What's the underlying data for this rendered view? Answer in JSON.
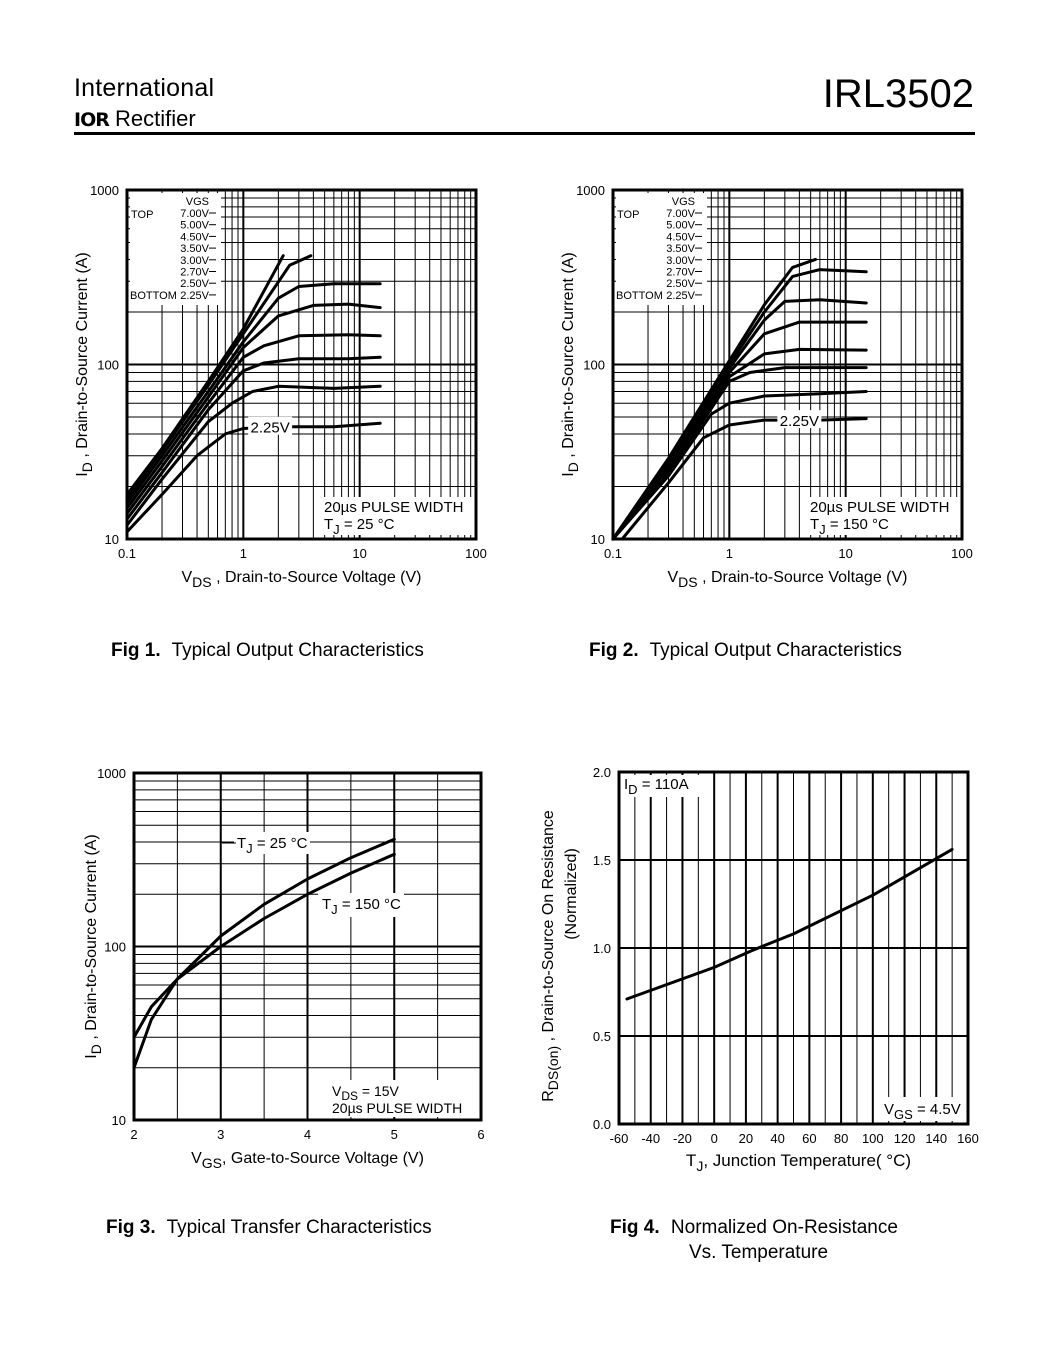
{
  "header": {
    "brand_line1": "International",
    "brand_logo": "IOR",
    "brand_line2": "Rectifier",
    "part_number": "IRL3502"
  },
  "captions": [
    {
      "fig": "Fig 1.",
      "text": "Typical Output Characteristics"
    },
    {
      "fig": "Fig 2.",
      "text": "Typical Output Characteristics"
    },
    {
      "fig": "Fig 3.",
      "text": "Typical Transfer Characteristics"
    },
    {
      "fig": "Fig 4.",
      "text": "Normalized On-Resistance",
      "text2": "Vs. Temperature"
    }
  ],
  "chart_data": [
    {
      "type": "line",
      "title": "Fig 1. Typical Output Characteristics",
      "xscale": "log",
      "yscale": "log",
      "xlim": [
        0.1,
        100
      ],
      "ylim": [
        10,
        1000
      ],
      "xticks": [
        "0.1",
        "1",
        "10",
        "100"
      ],
      "yticks": [
        "10",
        "100",
        "1000"
      ],
      "xlabel": {
        "main": "V",
        "sub": "DS",
        "rest": " , Drain-to-Source Voltage (V)"
      },
      "ylabel": {
        "main": "I",
        "sub": "D",
        "rest": " ,  Drain-to-Source Current (A)"
      },
      "legend": {
        "header": "VGS",
        "top_label": "TOP",
        "bottom_label": "BOTTOM",
        "values": [
          "7.00V",
          "5.00V",
          "4.50V",
          "3.50V",
          "3.00V",
          "2.70V",
          "2.50V",
          "2.25V"
        ]
      },
      "curve_label": "2.25V",
      "note_line1": "20µs PULSE WIDTH",
      "note_line2": {
        "main": "T",
        "sub": "J",
        "rest": " = 25 °C"
      },
      "series": [
        {
          "name": "7.00V",
          "x": [
            0.1,
            0.2,
            0.5,
            1,
            2.2
          ],
          "y": [
            18,
            33,
            80,
            160,
            420
          ]
        },
        {
          "name": "5.00V",
          "x": [
            0.1,
            0.2,
            0.5,
            1,
            2.5,
            3.8
          ],
          "y": [
            17,
            32,
            76,
            150,
            370,
            420
          ]
        },
        {
          "name": "4.50V",
          "x": [
            0.1,
            0.2,
            0.5,
            1,
            2,
            3,
            6,
            15
          ],
          "y": [
            16,
            30,
            70,
            135,
            240,
            280,
            290,
            290
          ]
        },
        {
          "name": "3.50V",
          "x": [
            0.1,
            0.2,
            0.5,
            1,
            2,
            4,
            8,
            15
          ],
          "y": [
            15,
            28,
            65,
            125,
            190,
            218,
            222,
            212
          ]
        },
        {
          "name": "3.00V",
          "x": [
            0.1,
            0.2,
            0.5,
            1,
            1.5,
            3,
            8,
            15
          ],
          "y": [
            14,
            26,
            60,
            110,
            128,
            146,
            148,
            146
          ]
        },
        {
          "name": "2.70V",
          "x": [
            0.1,
            0.2,
            0.5,
            1,
            1.5,
            3,
            8,
            15
          ],
          "y": [
            13,
            24,
            55,
            92,
            102,
            108,
            108,
            110
          ]
        },
        {
          "name": "2.50V",
          "x": [
            0.1,
            0.2,
            0.5,
            0.8,
            1.2,
            2,
            6,
            15
          ],
          "y": [
            12,
            22,
            47,
            60,
            70,
            75,
            73,
            75
          ]
        },
        {
          "name": "2.25V",
          "x": [
            0.1,
            0.2,
            0.4,
            0.7,
            1,
            2,
            6,
            15
          ],
          "y": [
            11,
            18,
            30,
            40,
            43,
            44,
            44,
            46
          ]
        }
      ]
    },
    {
      "type": "line",
      "title": "Fig 2. Typical Output Characteristics",
      "xscale": "log",
      "yscale": "log",
      "xlim": [
        0.1,
        100
      ],
      "ylim": [
        10,
        1000
      ],
      "xticks": [
        "0.1",
        "1",
        "10",
        "100"
      ],
      "yticks": [
        "10",
        "100",
        "1000"
      ],
      "xlabel": {
        "main": "V",
        "sub": "DS",
        "rest": " , Drain-to-Source Voltage (V)"
      },
      "ylabel": {
        "main": "I",
        "sub": "D",
        "rest": " ,  Drain-to-Source Current (A)"
      },
      "legend": {
        "header": "VGS",
        "top_label": "TOP",
        "bottom_label": "BOTTOM",
        "values": [
          "7.00V",
          "5.00V",
          "4.50V",
          "3.50V",
          "3.00V",
          "2.70V",
          "2.50V",
          "2.25V"
        ]
      },
      "curve_label": "2.25V",
      "note_line1": "20µs PULSE WIDTH",
      "note_line2": {
        "main": "T",
        "sub": "J",
        "rest": " = 150 °C"
      },
      "series": [
        {
          "name": "7.00V",
          "x": [
            0.1,
            0.3,
            1,
            2,
            3.5,
            5.5
          ],
          "y": [
            10,
            29,
            105,
            220,
            360,
            400
          ]
        },
        {
          "name": "5.00V",
          "x": [
            0.1,
            0.3,
            1,
            2,
            3.5,
            6,
            15
          ],
          "y": [
            10,
            28,
            100,
            200,
            320,
            350,
            340
          ]
        },
        {
          "name": "4.50V",
          "x": [
            0.1,
            0.3,
            1,
            2,
            3,
            6,
            15
          ],
          "y": [
            10,
            27,
            95,
            180,
            230,
            235,
            225
          ]
        },
        {
          "name": "3.50V",
          "x": [
            0.1,
            0.3,
            1,
            2,
            4,
            15
          ],
          "y": [
            10,
            26,
            90,
            150,
            175,
            175
          ]
        },
        {
          "name": "3.00V",
          "x": [
            0.1,
            0.3,
            1,
            2,
            4,
            15
          ],
          "y": [
            10,
            25,
            85,
            115,
            122,
            121
          ]
        },
        {
          "name": "2.70V",
          "x": [
            0.1,
            0.3,
            1,
            1.5,
            3,
            15
          ],
          "y": [
            10,
            24,
            80,
            90,
            96,
            96
          ]
        },
        {
          "name": "2.50V",
          "x": [
            0.1,
            0.3,
            0.7,
            1,
            2,
            6,
            15
          ],
          "y": [
            10,
            23,
            52,
            60,
            66,
            68,
            70
          ]
        },
        {
          "name": "2.25V",
          "x": [
            0.12,
            0.3,
            0.6,
            1,
            2,
            6,
            15
          ],
          "y": [
            10,
            21,
            38,
            45,
            48,
            48,
            49
          ]
        }
      ]
    },
    {
      "type": "line",
      "title": "Fig 3. Typical Transfer Characteristics",
      "xscale": "linear",
      "yscale": "log",
      "xlim": [
        2,
        6
      ],
      "ylim": [
        10,
        1000
      ],
      "xticks": [
        "2",
        "3",
        "4",
        "5",
        "6"
      ],
      "yticks": [
        "10",
        "100",
        "1000"
      ],
      "xlabel": {
        "main": "V",
        "sub": "GS",
        "rest": ", Gate-to-Source Voltage (V)"
      },
      "ylabel": {
        "main": "I",
        "sub": "D",
        "rest": " ,  Drain-to-Source Current (A)"
      },
      "label_25": {
        "main": "T",
        "sub": "J",
        "rest": " = 25 °C"
      },
      "label_150": {
        "main": "T",
        "sub": "J",
        "rest": " = 150 °C"
      },
      "note_line1": {
        "main": "V",
        "sub": "DS",
        "rest": " = 15V"
      },
      "note_line2": "20µs PULSE WIDTH",
      "series": [
        {
          "name": "TJ = 25 °C",
          "x": [
            2,
            2.2,
            2.5,
            3,
            3.5,
            4,
            4.5,
            5
          ],
          "y": [
            20,
            38,
            65,
            115,
            175,
            245,
            325,
            415
          ]
        },
        {
          "name": "TJ = 150 °C",
          "x": [
            2,
            2.2,
            2.5,
            3,
            3.5,
            4,
            4.5,
            5
          ],
          "y": [
            30,
            45,
            65,
            100,
            145,
            200,
            265,
            340
          ]
        }
      ]
    },
    {
      "type": "line",
      "title": "Fig 4. Normalized On-Resistance Vs. Temperature",
      "xscale": "linear",
      "yscale": "linear",
      "xlim": [
        -60,
        160
      ],
      "ylim": [
        0.0,
        2.0
      ],
      "xticks": [
        "-60",
        "-40",
        "-20",
        "0",
        "20",
        "40",
        "60",
        "80",
        "100",
        "120",
        "140",
        "160"
      ],
      "yticks": [
        "0.0",
        "0.5",
        "1.0",
        "1.5",
        "2.0"
      ],
      "xlabel": {
        "main": "T",
        "sub": "J",
        "rest": ", Junction Temperature( °C)"
      },
      "ylabel": {
        "main": "R",
        "sub": "DS(on)",
        "rest": " , Drain-to-Source On Resistance"
      },
      "ylabel2": "(Normalized)",
      "corner_label": {
        "main": "I",
        "sub": "D",
        "rest": " = 110A"
      },
      "note": {
        "main": "V",
        "sub": "GS",
        "rest": " = 4.5V"
      },
      "series": [
        {
          "name": "RDS(on)",
          "x": [
            -55,
            0,
            25,
            50,
            100,
            150
          ],
          "y": [
            0.71,
            0.89,
            0.99,
            1.08,
            1.3,
            1.56
          ]
        }
      ]
    }
  ]
}
